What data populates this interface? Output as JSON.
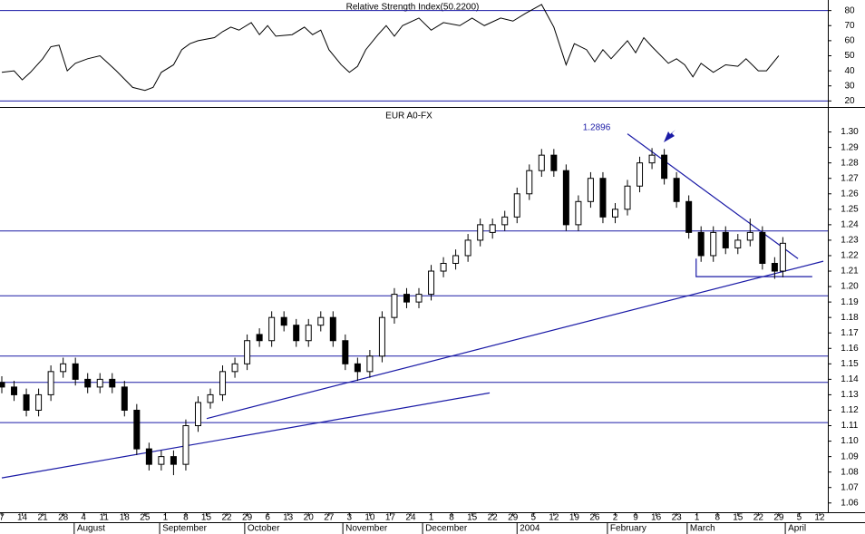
{
  "chart_data": [
    {
      "type": "line",
      "title": "Relative Strength Index(50.2200)",
      "x": [
        0,
        3,
        5,
        7,
        10,
        12,
        14,
        16,
        18,
        21,
        24,
        26,
        28,
        32,
        35,
        37,
        39,
        42,
        44,
        46,
        48,
        52,
        54,
        56,
        58,
        61,
        63,
        65,
        67,
        71,
        74,
        76,
        78,
        80,
        83,
        85,
        87,
        89,
        92,
        94,
        96,
        98,
        102,
        105,
        108,
        112,
        115,
        118,
        122,
        125,
        128,
        132,
        135,
        138,
        140,
        143,
        145,
        147,
        149,
        153,
        155,
        157,
        159,
        163,
        165,
        167,
        169,
        171,
        174,
        177,
        180,
        182,
        185,
        187,
        190
      ],
      "series": [
        {
          "color": "#000000",
          "values": [
            39,
            40,
            34,
            39,
            48,
            56,
            57,
            40,
            45,
            48,
            50,
            45,
            40,
            29,
            27,
            29,
            39,
            44,
            54,
            58,
            60,
            62,
            66,
            69,
            67,
            72,
            64,
            70,
            63,
            64,
            69,
            64,
            67,
            54,
            44,
            39,
            43,
            54,
            64,
            70,
            63,
            70,
            75,
            67,
            72,
            70,
            75,
            70,
            75,
            73,
            78,
            84,
            69,
            44,
            58,
            54,
            46,
            54,
            48,
            60,
            52,
            62,
            56,
            45,
            48,
            44,
            36,
            45,
            39,
            44,
            43,
            48,
            40,
            40,
            50
          ]
        }
      ],
      "xlim": [
        0,
        202
      ],
      "ylim": [
        16,
        87
      ],
      "yticks": [
        20,
        30,
        40,
        50,
        60,
        70,
        80
      ],
      "hlines": [
        80,
        20
      ],
      "line_color": "#1a1aa6"
    },
    {
      "type": "candlestick",
      "title": "EUR A0-FX",
      "annotation": "1.2896",
      "x": [
        0,
        3,
        6,
        9,
        12,
        15,
        18,
        21,
        24,
        27,
        30,
        33,
        36,
        39,
        42,
        45,
        48,
        51,
        54,
        57,
        60,
        63,
        66,
        69,
        72,
        75,
        78,
        81,
        84,
        87,
        90,
        93,
        96,
        99,
        102,
        105,
        108,
        111,
        114,
        117,
        120,
        123,
        126,
        129,
        132,
        135,
        138,
        141,
        144,
        147,
        150,
        153,
        156,
        159,
        162,
        165,
        168,
        171,
        174,
        177,
        180,
        183,
        186,
        189,
        191
      ],
      "open": [
        1.138,
        1.135,
        1.13,
        1.12,
        1.13,
        1.145,
        1.15,
        1.14,
        1.135,
        1.14,
        1.135,
        1.12,
        1.095,
        1.085,
        1.09,
        1.085,
        1.11,
        1.125,
        1.13,
        1.145,
        1.15,
        1.169,
        1.165,
        1.18,
        1.175,
        1.165,
        1.175,
        1.18,
        1.165,
        1.15,
        1.145,
        1.155,
        1.18,
        1.195,
        1.19,
        1.195,
        1.21,
        1.215,
        1.22,
        1.23,
        1.235,
        1.24,
        1.245,
        1.26,
        1.275,
        1.285,
        1.275,
        1.24,
        1.255,
        1.27,
        1.245,
        1.25,
        1.265,
        1.28,
        1.285,
        1.27,
        1.255,
        1.235,
        1.22,
        1.235,
        1.225,
        1.23,
        1.235,
        1.215,
        1.21
      ],
      "high": [
        1.142,
        1.139,
        1.134,
        1.134,
        1.149,
        1.154,
        1.154,
        1.144,
        1.144,
        1.144,
        1.139,
        1.124,
        1.099,
        1.094,
        1.094,
        1.114,
        1.129,
        1.134,
        1.149,
        1.154,
        1.169,
        1.173,
        1.184,
        1.184,
        1.179,
        1.179,
        1.184,
        1.184,
        1.169,
        1.154,
        1.159,
        1.184,
        1.199,
        1.199,
        1.199,
        1.214,
        1.219,
        1.224,
        1.234,
        1.244,
        1.244,
        1.249,
        1.264,
        1.279,
        1.289,
        1.289,
        1.279,
        1.259,
        1.274,
        1.274,
        1.254,
        1.269,
        1.284,
        1.2896,
        1.289,
        1.274,
        1.259,
        1.239,
        1.239,
        1.239,
        1.234,
        1.244,
        1.239,
        1.219,
        1.232
      ],
      "low": [
        1.131,
        1.126,
        1.116,
        1.116,
        1.126,
        1.141,
        1.136,
        1.131,
        1.131,
        1.131,
        1.116,
        1.091,
        1.081,
        1.081,
        1.078,
        1.081,
        1.106,
        1.121,
        1.126,
        1.141,
        1.146,
        1.161,
        1.161,
        1.171,
        1.161,
        1.161,
        1.171,
        1.161,
        1.146,
        1.139,
        1.141,
        1.151,
        1.176,
        1.186,
        1.186,
        1.191,
        1.206,
        1.211,
        1.216,
        1.226,
        1.231,
        1.236,
        1.241,
        1.256,
        1.271,
        1.271,
        1.236,
        1.236,
        1.251,
        1.241,
        1.241,
        1.246,
        1.261,
        1.276,
        1.266,
        1.251,
        1.231,
        1.216,
        1.216,
        1.221,
        1.221,
        1.226,
        1.211,
        1.205,
        1.206
      ],
      "close": [
        1.135,
        1.13,
        1.12,
        1.13,
        1.145,
        1.15,
        1.14,
        1.135,
        1.14,
        1.135,
        1.12,
        1.095,
        1.085,
        1.09,
        1.085,
        1.11,
        1.125,
        1.13,
        1.145,
        1.15,
        1.165,
        1.165,
        1.18,
        1.175,
        1.165,
        1.175,
        1.18,
        1.165,
        1.15,
        1.145,
        1.155,
        1.18,
        1.195,
        1.19,
        1.195,
        1.21,
        1.215,
        1.22,
        1.23,
        1.24,
        1.24,
        1.245,
        1.26,
        1.275,
        1.285,
        1.275,
        1.24,
        1.255,
        1.27,
        1.245,
        1.25,
        1.265,
        1.28,
        1.285,
        1.27,
        1.255,
        1.235,
        1.22,
        1.235,
        1.225,
        1.23,
        1.235,
        1.215,
        1.21,
        1.228
      ],
      "up_color": "#ffffff",
      "down_color": "#000000",
      "xlim": [
        0,
        202
      ],
      "ylim": [
        1.054,
        1.315
      ],
      "yticks": [
        1.06,
        1.07,
        1.08,
        1.09,
        {
          "value": 1.1,
          "label": "1.10"
        },
        1.11,
        1.12,
        1.13,
        1.14,
        1.15,
        1.16,
        1.17,
        1.18,
        1.19,
        {
          "value": 1.2,
          "label": "1.20"
        },
        1.21,
        1.22,
        1.23,
        1.24,
        1.25,
        1.26,
        1.27,
        1.28,
        1.29,
        {
          "value": 1.3,
          "label": "1.30"
        }
      ],
      "xticks": [
        {
          "value": 0,
          "label": "7"
        },
        {
          "value": 5,
          "label": "14"
        },
        {
          "value": 10,
          "label": "21"
        },
        {
          "value": 15,
          "label": "28"
        },
        {
          "value": 20,
          "label": "4"
        },
        {
          "value": 25,
          "label": "11"
        },
        {
          "value": 30,
          "label": "18"
        },
        {
          "value": 35,
          "label": "25"
        },
        {
          "value": 40,
          "label": "1"
        },
        {
          "value": 45,
          "label": "8"
        },
        {
          "value": 50,
          "label": "15"
        },
        {
          "value": 55,
          "label": "22"
        },
        {
          "value": 60,
          "label": "29"
        },
        {
          "value": 65,
          "label": "6"
        },
        {
          "value": 70,
          "label": "13"
        },
        {
          "value": 75,
          "label": "20"
        },
        {
          "value": 80,
          "label": "27"
        },
        {
          "value": 85,
          "label": "3"
        },
        {
          "value": 90,
          "label": "10"
        },
        {
          "value": 95,
          "label": "17"
        },
        {
          "value": 100,
          "label": "24"
        },
        {
          "value": 105,
          "label": "1"
        },
        {
          "value": 110,
          "label": "8"
        },
        {
          "value": 115,
          "label": "15"
        },
        {
          "value": 120,
          "label": "22"
        },
        {
          "value": 125,
          "label": "29"
        },
        {
          "value": 130,
          "label": "5"
        },
        {
          "value": 135,
          "label": "12"
        },
        {
          "value": 140,
          "label": "19"
        },
        {
          "value": 145,
          "label": "26"
        },
        {
          "value": 150,
          "label": "2"
        },
        {
          "value": 155,
          "label": "9"
        },
        {
          "value": 160,
          "label": "16"
        },
        {
          "value": 165,
          "label": "23"
        },
        {
          "value": 170,
          "label": "1"
        },
        {
          "value": 175,
          "label": "8"
        },
        {
          "value": 180,
          "label": "15"
        },
        {
          "value": 185,
          "label": "22"
        },
        {
          "value": 190,
          "label": "29"
        },
        {
          "value": 195,
          "label": "5"
        },
        {
          "value": 200,
          "label": "12"
        }
      ],
      "months": [
        {
          "value": 17.7,
          "label": "August"
        },
        {
          "value": 38.6,
          "label": "September"
        },
        {
          "value": 59.4,
          "label": "October"
        },
        {
          "value": 83.4,
          "label": "November"
        },
        {
          "value": 102.9,
          "label": "December"
        },
        {
          "value": 126,
          "label": "2004"
        },
        {
          "value": 148.1,
          "label": "February"
        },
        {
          "value": 167.6,
          "label": "March"
        },
        {
          "value": 191.6,
          "label": "April"
        }
      ],
      "hlines": [
        1.236,
        1.194,
        1.155,
        1.138,
        1.112
      ],
      "line_color": "#1a1aa6",
      "trendlines": [
        {
          "x": [
            0,
            119.3
          ],
          "y": [
            1.0762,
            1.1312
          ]
        },
        {
          "x": [
            50.1,
            200.9
          ],
          "y": [
            1.1146,
            1.2164
          ]
        },
        {
          "x": [
            153,
            194.7
          ],
          "y": [
            1.2988,
            1.2181
          ]
        },
        {
          "x": [
            169.8,
            169.8,
            198.2
          ],
          "y": [
            1.2181,
            1.2064,
            1.2064
          ]
        }
      ]
    }
  ]
}
